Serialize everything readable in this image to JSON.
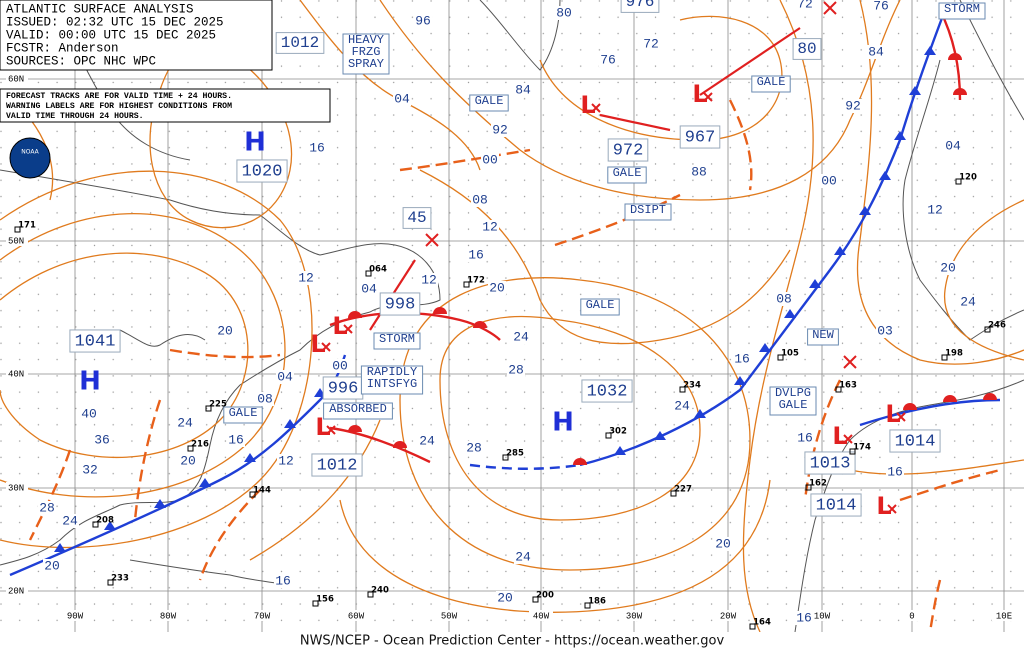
{
  "header": {
    "lines": [
      "ATLANTIC SURFACE ANALYSIS",
      "ISSUED: 02:32 UTC 15 DEC 2025",
      "VALID:  00:00 UTC 15 DEC 2025",
      "FCSTR:  Anderson",
      "SOURCES: OPC NHC WPC"
    ]
  },
  "notice": [
    "FORECAST TRACKS ARE FOR VALID TIME + 24 HOURS.",
    "WARNING LABELS ARE FOR HIGHEST CONDITIONS FROM",
    "VALID TIME THROUGH 24 HOURS."
  ],
  "logo": "NOAA",
  "footer": "NWS/NCEP - Ocean Prediction Center - https://ocean.weather.gov",
  "latitudes": [
    "60N",
    "50N",
    "40N",
    "30N",
    "20N"
  ],
  "longitudes": [
    "90W",
    "80W",
    "70W",
    "60W",
    "50W",
    "40W",
    "30W",
    "20W",
    "10W",
    "0",
    "10E"
  ],
  "highs": [
    {
      "letter": "H",
      "pressure": "1020"
    },
    {
      "letter": "H",
      "pressure": "1041"
    },
    {
      "letter": "H",
      "pressure": "1032"
    }
  ],
  "lows": [
    {
      "letter": "L",
      "pressure": "972"
    },
    {
      "letter": "L",
      "pressure": "967"
    },
    {
      "letter": "L",
      "pressure": "998"
    },
    {
      "letter": "L",
      "pressure": "996"
    },
    {
      "letter": "L",
      "pressure": "1012"
    },
    {
      "letter": "L",
      "pressure": "1013"
    },
    {
      "letter": "L",
      "pressure": "1014"
    },
    {
      "letter": "L",
      "pressure": "1014"
    }
  ],
  "other_pressures": [
    "1012",
    "976",
    "80",
    "45"
  ],
  "warnings": [
    "HEAVY FRZG SPRAY",
    "STORM",
    "GALE",
    "GALE",
    "GALE",
    "DSIPT",
    "GALE",
    "STORM",
    "RAPIDLY INTSFYG",
    "ABSORBED",
    "GALE",
    "NEW",
    "DVLPG GALE"
  ],
  "isobar_labels": [
    "96",
    "80",
    "76",
    "72",
    "72",
    "76",
    "84",
    "92",
    "04",
    "92",
    "84",
    "00",
    "88",
    "16",
    "08",
    "12",
    "16",
    "20",
    "12",
    "04",
    "12",
    "20",
    "24",
    "28",
    "04",
    "08",
    "00",
    "12",
    "24",
    "28",
    "16",
    "20",
    "24",
    "36",
    "40",
    "32",
    "28",
    "24",
    "20",
    "16",
    "20",
    "24",
    "20",
    "24",
    "16",
    "08",
    "00",
    "04",
    "12",
    "20",
    "24",
    "03",
    "16",
    "16",
    "16"
  ],
  "stations": [
    "171",
    "064",
    "172",
    "302",
    "285",
    "234",
    "144",
    "208",
    "233",
    "240",
    "200",
    "186",
    "164",
    "198",
    "246",
    "163",
    "174",
    "162",
    "227",
    "225",
    "216",
    "105",
    "120",
    "156"
  ]
}
